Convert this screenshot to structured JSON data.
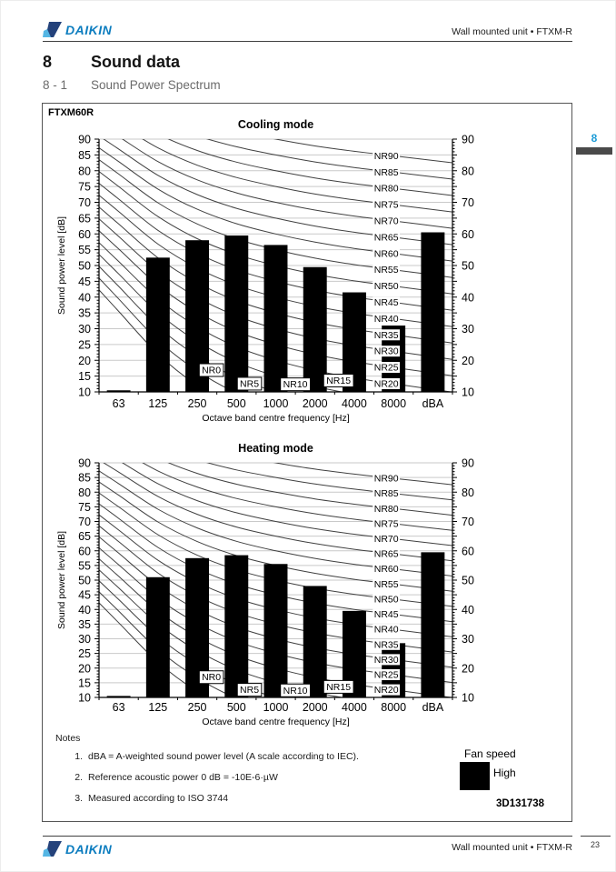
{
  "header": {
    "brand": "DAIKIN",
    "doc_ref": "Wall mounted unit • FTXM-R"
  },
  "chapter_tab": {
    "number": "8"
  },
  "section": {
    "number": "8",
    "title": "Sound data"
  },
  "subsection": {
    "number": "8 - 1",
    "title": "Sound Power Spectrum"
  },
  "model": "FTXM60R",
  "chart_data": [
    {
      "type": "bar",
      "title": "Cooling mode",
      "categories": [
        "63",
        "125",
        "250",
        "500",
        "1000",
        "2000",
        "4000",
        "8000",
        "dBA"
      ],
      "values": [
        10.5,
        52.5,
        58,
        59.5,
        56.5,
        49.5,
        41.5,
        31,
        60.5
      ],
      "xlabel": "Octave band centre frequency [Hz]",
      "ylabel": "Sound power level [dB]",
      "ylim": [
        10,
        90
      ],
      "left_tick_step": 5,
      "right_tick_step": 10,
      "minor_tick_step": 1,
      "grid": true,
      "overlay": "NR curves NR0–NR90 in steps of 5"
    },
    {
      "type": "bar",
      "title": "Heating mode",
      "categories": [
        "63",
        "125",
        "250",
        "500",
        "1000",
        "2000",
        "4000",
        "8000",
        "dBA"
      ],
      "values": [
        10.5,
        51,
        57.5,
        58.5,
        55.5,
        48,
        39.5,
        28.5,
        59.5
      ],
      "xlabel": "Octave band centre frequency [Hz]",
      "ylabel": "Sound power level [dB]",
      "ylim": [
        10,
        90
      ],
      "left_tick_step": 5,
      "right_tick_step": 10,
      "minor_tick_step": 1,
      "grid": true,
      "overlay": "NR curves NR0–NR90 in steps of 5"
    }
  ],
  "nr_overlay": {
    "curve_min": 0,
    "curve_max": 90,
    "curve_step": 5,
    "octaves": [
      63,
      125,
      250,
      500,
      1000,
      2000,
      4000,
      8000
    ],
    "base": [
      35.5,
      22.0,
      12.0,
      4.8,
      0.0,
      -3.5,
      -6.1,
      -8.0
    ],
    "slope": [
      0.79,
      0.87,
      0.93,
      0.974,
      1.0,
      1.015,
      1.025,
      1.03
    ],
    "right_labels": [
      "NR90",
      "NR85",
      "NR80",
      "NR75",
      "NR70",
      "NR65",
      "NR60",
      "NR55",
      "NR50",
      "NR45",
      "NR40",
      "NR35",
      "NR30",
      "NR25",
      "NR20"
    ],
    "boxed_labels": [
      {
        "label": "NR0",
        "x_band": 2.36,
        "db": 16.9
      },
      {
        "label": "NR5",
        "x_band": 3.33,
        "db": 12.6
      },
      {
        "label": "NR10",
        "x_band": 4.5,
        "db": 12.4
      },
      {
        "label": "NR15",
        "x_band": 5.6,
        "db": 13.6
      }
    ]
  },
  "notes": {
    "label": "Notes",
    "items": [
      {
        "num": "1.",
        "text": "dBA = A-weighted sound power level (A scale according to IEC)."
      },
      {
        "num": "2.",
        "text": "Reference acoustic power 0 dB = -10E-6·µW"
      },
      {
        "num": "3.",
        "text": "Measured according to ISO 3744"
      }
    ]
  },
  "legend": {
    "title": "Fan speed",
    "entries": [
      {
        "label": "High",
        "color": "#000000"
      }
    ]
  },
  "drawing_ref": "3D131738",
  "footer": {
    "doc_ref": "Wall mounted unit • FTXM-R",
    "page_number": "23"
  },
  "colors": {
    "brand_blue": "#0d7dbf",
    "logo_navy": "#24427b",
    "logo_light_blue": "#55b6e4",
    "tab_blue": "#1e9cd7",
    "tab_bar_gray": "#4a4a4a",
    "bar": "#000000",
    "grid": "#c9c9c9",
    "curve": "#404040"
  }
}
